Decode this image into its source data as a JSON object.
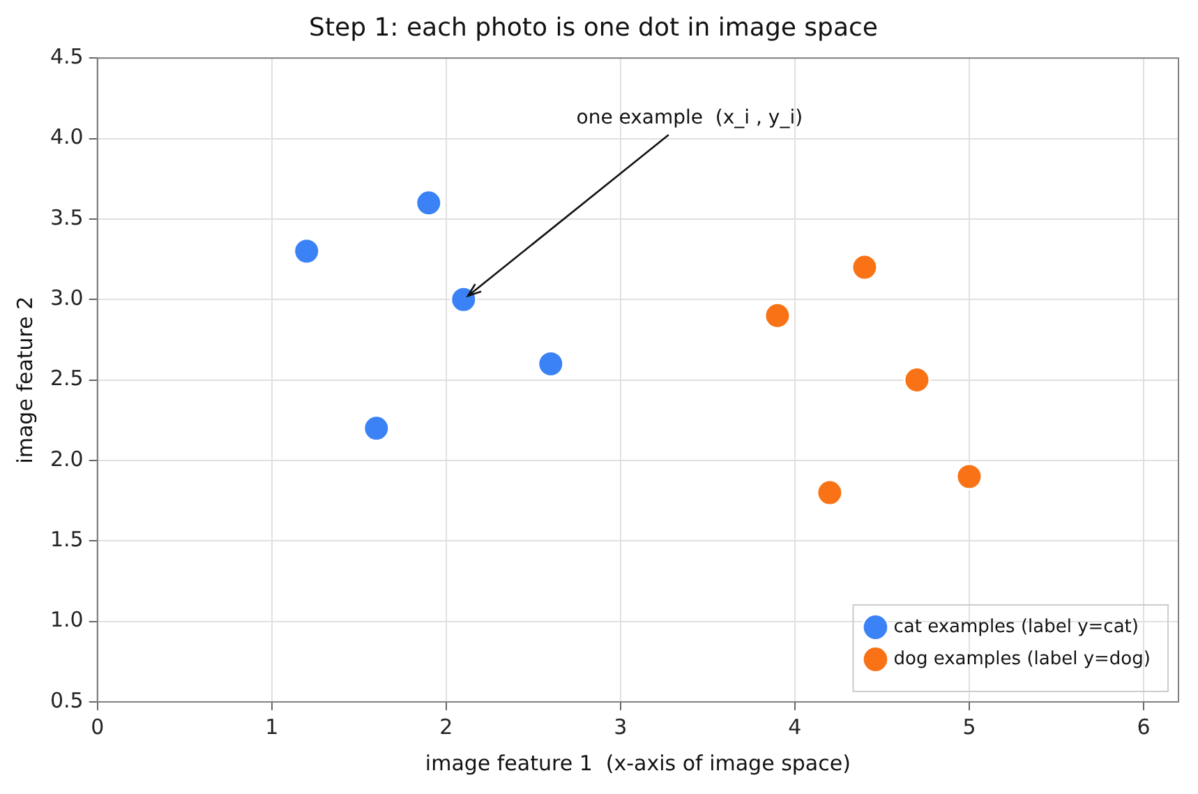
{
  "chart_data": {
    "type": "scatter",
    "title": "Step 1: each photo is one dot in image space",
    "xlabel": "image feature 1  (x-axis of image space)",
    "ylabel": "image feature 2",
    "series": [
      {
        "name": "cat examples (label y=cat)",
        "color": "#3b82f6",
        "x": [
          1.2,
          1.6,
          1.9,
          2.1,
          2.6
        ],
        "values": [
          3.3,
          2.2,
          3.6,
          3.0,
          2.6
        ]
      },
      {
        "name": "dog examples (label y=dog)",
        "color": "#f97316",
        "x": [
          3.9,
          4.2,
          4.4,
          4.7,
          5.0
        ],
        "values": [
          2.9,
          1.8,
          3.2,
          2.5,
          1.9
        ]
      }
    ],
    "xlim": [
      0,
      6.2
    ],
    "xticks": [
      0,
      1,
      2,
      3,
      4,
      5,
      6
    ],
    "ylim": [
      0.5,
      4.5
    ],
    "yticks": [
      0.5,
      {
        "value": 1,
        "label": "1.0"
      },
      1.5,
      {
        "value": 2,
        "label": "2.0"
      },
      2.5,
      {
        "value": 3,
        "label": "3.0"
      },
      3.5,
      {
        "value": 4,
        "label": "4.0"
      },
      4.5
    ],
    "annotations": [
      {
        "text": "one example  (x_i , y_i)",
        "x": 2.1,
        "y": 3.0
      }
    ],
    "grid": true,
    "legend": "bottom right",
    "marker": "circle"
  }
}
